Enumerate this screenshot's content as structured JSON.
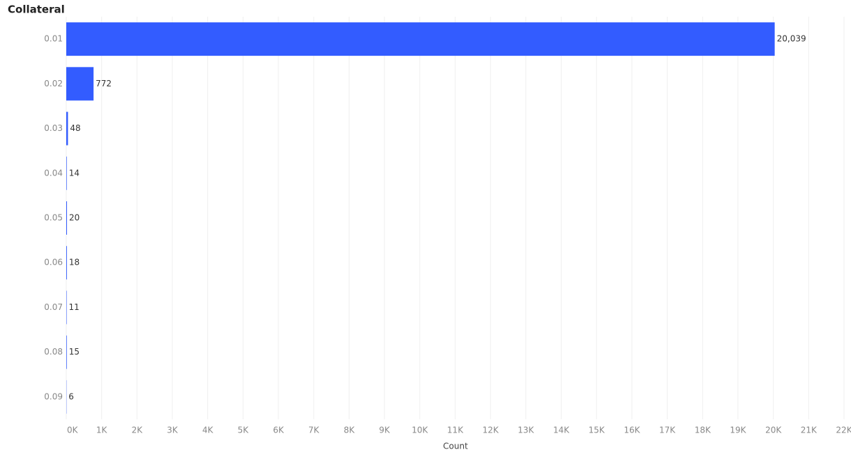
{
  "chart_data": {
    "type": "hbar",
    "title": "Collateral",
    "x_label": "Count",
    "categories": [
      "0.01",
      "0.02",
      "0.03",
      "0.04",
      "0.05",
      "0.06",
      "0.07",
      "0.08",
      "0.09"
    ],
    "values": [
      20039,
      772,
      48,
      14,
      20,
      18,
      11,
      15,
      6
    ],
    "value_labels": [
      "20,039",
      "772",
      "48",
      "14",
      "20",
      "18",
      "11",
      "15",
      "6"
    ],
    "color": "#335cff",
    "xlim": [
      0,
      22000
    ],
    "xticks": [
      {
        "value": 0,
        "label": "0K"
      },
      {
        "value": 1000,
        "label": "1K"
      },
      {
        "value": 2000,
        "label": "2K"
      },
      {
        "value": 3000,
        "label": "3K"
      },
      {
        "value": 4000,
        "label": "4K"
      },
      {
        "value": 5000,
        "label": "5K"
      },
      {
        "value": 6000,
        "label": "6K"
      },
      {
        "value": 7000,
        "label": "7K"
      },
      {
        "value": 8000,
        "label": "8K"
      },
      {
        "value": 9000,
        "label": "9K"
      },
      {
        "value": 10000,
        "label": "10K"
      },
      {
        "value": 11000,
        "label": "11K"
      },
      {
        "value": 12000,
        "label": "12K"
      },
      {
        "value": 13000,
        "label": "13K"
      },
      {
        "value": 14000,
        "label": "14K"
      },
      {
        "value": 15000,
        "label": "15K"
      },
      {
        "value": 16000,
        "label": "16K"
      },
      {
        "value": 17000,
        "label": "17K"
      },
      {
        "value": 18000,
        "label": "18K"
      },
      {
        "value": 19000,
        "label": "19K"
      },
      {
        "value": 20000,
        "label": "20K"
      },
      {
        "value": 21000,
        "label": "21K"
      },
      {
        "value": 22000,
        "label": "22K"
      }
    ],
    "grid": true
  }
}
